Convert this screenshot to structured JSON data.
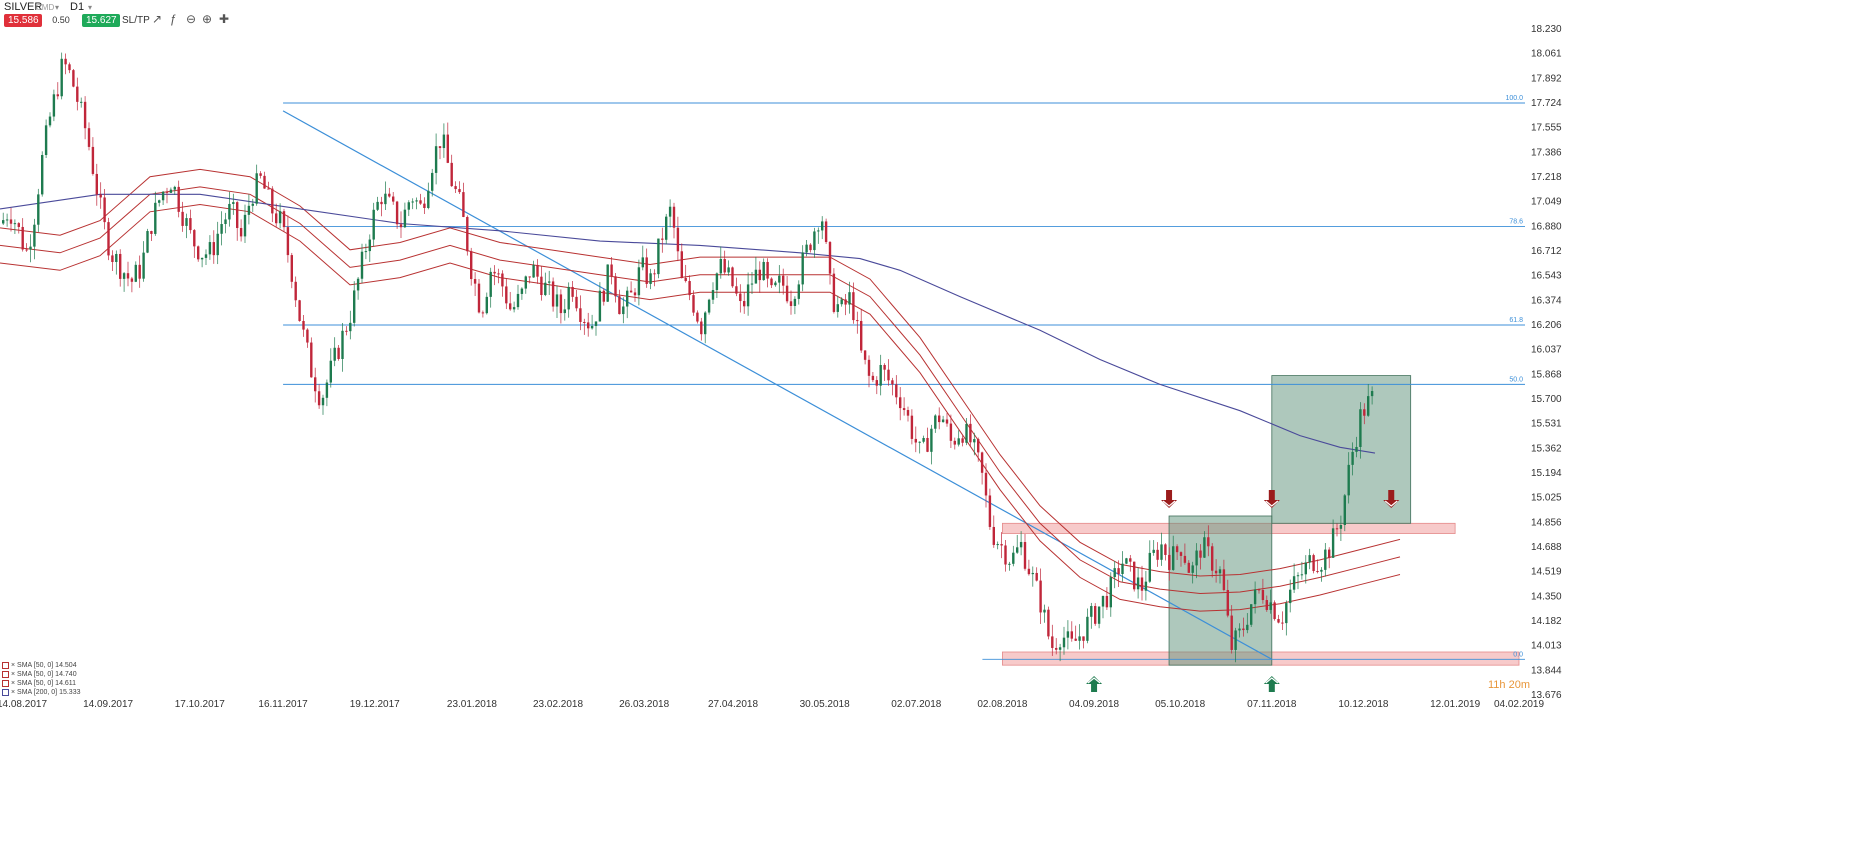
{
  "toolbar": {
    "symbol": "SILVER",
    "source": "CMD",
    "timeframe": "D1",
    "bid": "15.586",
    "lot": "0.50",
    "ask": "15.627",
    "sltp": "SL/TP",
    "icons": [
      "indicators-icon",
      "drawing-icon",
      "zoom-out-icon",
      "zoom-in-icon",
      "crosshair-icon"
    ]
  },
  "timer": "11h 20m",
  "indicators": [
    {
      "label": "SMA [50, 0] 14.504",
      "color": "#b83232"
    },
    {
      "label": "SMA [50, 0] 14.740",
      "color": "#b83232"
    },
    {
      "label": "SMA [50, 0] 14.611",
      "color": "#b83232"
    },
    {
      "label": "SMA [200, 0] 15.333",
      "color": "#4a4a9a"
    }
  ],
  "colors": {
    "bull": "#1e7b4f",
    "bear": "#c0263a",
    "sma": "#b83232",
    "sma200": "#4a4a9a",
    "fib": "#3c8fd8",
    "zone": "#f2a7a7",
    "box": "#5d9179",
    "arrow_up": "#1e7b4f",
    "arrow_down": "#9b1c1c"
  },
  "chart_data": {
    "type": "candlestick",
    "y_ticks": [
      "18.230",
      "18.061",
      "17.892",
      "17.724",
      "17.555",
      "17.386",
      "17.218",
      "17.049",
      "16.880",
      "16.712",
      "16.543",
      "16.374",
      "16.206",
      "16.037",
      "15.868",
      "15.700",
      "15.531",
      "15.362",
      "15.194",
      "15.025",
      "14.856",
      "14.688",
      "14.519",
      "14.350",
      "14.182",
      "14.013",
      "13.844",
      "13.676"
    ],
    "x_ticks": [
      "14.08.2017",
      "14.09.2017",
      "17.10.2017",
      "16.11.2017",
      "19.12.2017",
      "23.01.2018",
      "23.02.2018",
      "26.03.2018",
      "27.04.2018",
      "30.05.2018",
      "02.07.2018",
      "02.08.2018",
      "04.09.2018",
      "05.10.2018",
      "07.11.2018",
      "10.12.2018",
      "12.01.2019",
      "04.02.2019"
    ],
    "ylim": [
      13.676,
      18.23
    ],
    "fib_levels": [
      {
        "label": "100.0",
        "value": 17.724
      },
      {
        "label": "78.6",
        "value": 16.88
      },
      {
        "label": "61.8",
        "value": 16.206
      },
      {
        "label": "50.0",
        "value": 15.8
      },
      {
        "label": "0.0",
        "value": 13.92
      }
    ],
    "trendline": {
      "start": [
        "16.11.2017",
        17.67
      ],
      "end": [
        "07.11.2018",
        13.92
      ]
    },
    "zones": [
      {
        "from": "02.08.2018",
        "to": "12.01.2019",
        "low": 14.78,
        "high": 14.85
      },
      {
        "from": "02.08.2018",
        "to": "04.02.2019",
        "low": 13.88,
        "high": 13.97
      }
    ],
    "boxes": [
      {
        "from": "01.10.2018",
        "to": "07.11.2018",
        "low": 13.88,
        "high": 14.9
      },
      {
        "from": "07.11.2018",
        "to": "27.12.2018",
        "low": 14.85,
        "high": 15.86
      }
    ],
    "arrows": [
      {
        "dir": "up",
        "date": "04.09.2018"
      },
      {
        "dir": "up",
        "date": "07.11.2018"
      },
      {
        "dir": "down",
        "date": "01.10.2018"
      },
      {
        "dir": "down",
        "date": "07.11.2018"
      },
      {
        "dir": "down",
        "date": "20.12.2018"
      }
    ],
    "price_path": [
      [
        0,
        16.9
      ],
      [
        8,
        17.0
      ],
      [
        15,
        16.9
      ],
      [
        25,
        16.7
      ],
      [
        32,
        16.9
      ],
      [
        40,
        17.3
      ],
      [
        48,
        17.6
      ],
      [
        55,
        17.8
      ],
      [
        62,
        18.0
      ],
      [
        70,
        17.9
      ],
      [
        78,
        17.7
      ],
      [
        86,
        17.5
      ],
      [
        94,
        17.2
      ],
      [
        102,
        16.9
      ],
      [
        110,
        16.7
      ],
      [
        120,
        16.6
      ],
      [
        130,
        16.5
      ],
      [
        140,
        16.6
      ],
      [
        150,
        16.9
      ],
      [
        160,
        17.1
      ],
      [
        170,
        17.2
      ],
      [
        180,
        17.0
      ],
      [
        190,
        16.8
      ],
      [
        200,
        16.7
      ],
      [
        210,
        16.7
      ],
      [
        220,
        16.9
      ],
      [
        230,
        17.0
      ],
      [
        240,
        16.8
      ],
      [
        250,
        17.1
      ],
      [
        260,
        17.2
      ],
      [
        270,
        17.0
      ],
      [
        280,
        16.9
      ],
      [
        290,
        16.6
      ],
      [
        300,
        16.2
      ],
      [
        310,
        15.9
      ],
      [
        320,
        15.7
      ],
      [
        330,
        15.9
      ],
      [
        340,
        16.1
      ],
      [
        350,
        16.3
      ],
      [
        360,
        16.6
      ],
      [
        370,
        16.9
      ],
      [
        380,
        17.1
      ],
      [
        390,
        17.0
      ],
      [
        400,
        16.9
      ],
      [
        410,
        17.1
      ],
      [
        420,
        17.0
      ],
      [
        430,
        17.3
      ],
      [
        440,
        17.5
      ],
      [
        450,
        17.2
      ],
      [
        460,
        17.0
      ],
      [
        470,
        16.6
      ],
      [
        480,
        16.3
      ],
      [
        490,
        16.6
      ],
      [
        500,
        16.5
      ],
      [
        510,
        16.3
      ],
      [
        520,
        16.4
      ],
      [
        530,
        16.6
      ],
      [
        540,
        16.5
      ],
      [
        550,
        16.4
      ],
      [
        560,
        16.3
      ],
      [
        570,
        16.5
      ],
      [
        580,
        16.3
      ],
      [
        590,
        16.2
      ],
      [
        600,
        16.4
      ],
      [
        610,
        16.6
      ],
      [
        620,
        16.3
      ],
      [
        630,
        16.4
      ],
      [
        640,
        16.6
      ],
      [
        650,
        16.5
      ],
      [
        660,
        16.8
      ],
      [
        670,
        17.0
      ],
      [
        680,
        16.5
      ],
      [
        690,
        16.4
      ],
      [
        700,
        16.2
      ],
      [
        710,
        16.5
      ],
      [
        720,
        16.6
      ],
      [
        730,
        16.5
      ],
      [
        740,
        16.3
      ],
      [
        750,
        16.5
      ],
      [
        760,
        16.6
      ],
      [
        770,
        16.4
      ],
      [
        780,
        16.5
      ],
      [
        790,
        16.4
      ],
      [
        800,
        16.6
      ],
      [
        810,
        16.8
      ],
      [
        820,
        17.0
      ],
      [
        830,
        16.4
      ],
      [
        840,
        16.3
      ],
      [
        850,
        16.4
      ],
      [
        860,
        16.0
      ],
      [
        870,
        15.8
      ],
      [
        880,
        15.9
      ],
      [
        890,
        15.8
      ],
      [
        900,
        15.7
      ],
      [
        910,
        15.5
      ],
      [
        920,
        15.3
      ],
      [
        930,
        15.5
      ],
      [
        940,
        15.6
      ],
      [
        950,
        15.4
      ],
      [
        960,
        15.5
      ],
      [
        970,
        15.4
      ],
      [
        980,
        15.2
      ],
      [
        990,
        14.8
      ],
      [
        1000,
        14.7
      ],
      [
        1010,
        14.6
      ],
      [
        1020,
        14.7
      ],
      [
        1030,
        14.5
      ],
      [
        1040,
        14.3
      ],
      [
        1050,
        14.0
      ],
      [
        1060,
        14.1
      ],
      [
        1070,
        14.0
      ],
      [
        1080,
        14.1
      ],
      [
        1090,
        14.2
      ],
      [
        1100,
        14.3
      ],
      [
        1110,
        14.4
      ],
      [
        1120,
        14.6
      ],
      [
        1130,
        14.5
      ],
      [
        1140,
        14.4
      ],
      [
        1150,
        14.6
      ],
      [
        1160,
        14.7
      ],
      [
        1170,
        14.6
      ],
      [
        1180,
        14.7
      ],
      [
        1190,
        14.5
      ],
      [
        1200,
        14.7
      ],
      [
        1210,
        14.6
      ],
      [
        1220,
        14.5
      ],
      [
        1230,
        14.0
      ],
      [
        1240,
        14.1
      ],
      [
        1250,
        14.3
      ],
      [
        1260,
        14.4
      ],
      [
        1270,
        14.3
      ],
      [
        1280,
        14.2
      ],
      [
        1290,
        14.4
      ],
      [
        1300,
        14.5
      ],
      [
        1310,
        14.6
      ],
      [
        1320,
        14.6
      ],
      [
        1330,
        14.7
      ],
      [
        1340,
        14.9
      ],
      [
        1350,
        15.3
      ],
      [
        1360,
        15.6
      ],
      [
        1370,
        15.7
      ]
    ],
    "sma200_path": [
      [
        0,
        17.0
      ],
      [
        100,
        17.1
      ],
      [
        200,
        17.1
      ],
      [
        300,
        17.0
      ],
      [
        400,
        16.9
      ],
      [
        500,
        16.85
      ],
      [
        600,
        16.78
      ],
      [
        700,
        16.75
      ],
      [
        800,
        16.7
      ],
      [
        860,
        16.66
      ],
      [
        900,
        16.58
      ],
      [
        960,
        16.4
      ],
      [
        1040,
        16.17
      ],
      [
        1100,
        15.97
      ],
      [
        1160,
        15.8
      ],
      [
        1240,
        15.62
      ],
      [
        1300,
        15.45
      ],
      [
        1340,
        15.37
      ],
      [
        1375,
        15.33
      ]
    ],
    "sma_mid_path": [
      [
        0,
        16.75
      ],
      [
        60,
        16.7
      ],
      [
        100,
        16.8
      ],
      [
        150,
        17.1
      ],
      [
        200,
        17.15
      ],
      [
        250,
        17.1
      ],
      [
        300,
        16.9
      ],
      [
        350,
        16.6
      ],
      [
        400,
        16.65
      ],
      [
        450,
        16.75
      ],
      [
        500,
        16.65
      ],
      [
        550,
        16.6
      ],
      [
        600,
        16.55
      ],
      [
        650,
        16.5
      ],
      [
        700,
        16.55
      ],
      [
        750,
        16.55
      ],
      [
        800,
        16.55
      ],
      [
        830,
        16.55
      ],
      [
        870,
        16.4
      ],
      [
        920,
        16.0
      ],
      [
        960,
        15.6
      ],
      [
        1000,
        15.2
      ],
      [
        1040,
        14.85
      ],
      [
        1080,
        14.6
      ],
      [
        1120,
        14.45
      ],
      [
        1160,
        14.4
      ],
      [
        1200,
        14.37
      ],
      [
        1240,
        14.38
      ],
      [
        1280,
        14.42
      ],
      [
        1320,
        14.48
      ],
      [
        1360,
        14.55
      ],
      [
        1400,
        14.62
      ]
    ],
    "sma_band": 0.12
  }
}
